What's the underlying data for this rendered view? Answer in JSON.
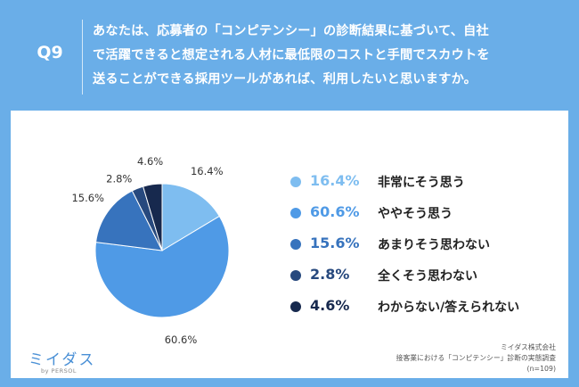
{
  "question": {
    "label": "Q9",
    "lines": [
      "あなたは、応募者の「コンピテンシー」の診断結果に基づいて、自社",
      "で活躍できると想定される人材に最低限のコストと手間でスカウトを",
      "送ることができる採用ツールがあれば、利用したいと思いますか。"
    ]
  },
  "chart_data": {
    "type": "pie",
    "title": "",
    "categories": [
      "非常にそう思う",
      "ややそう思う",
      "あまりそう思わない",
      "全くそう思わない",
      "わからない/答えられない"
    ],
    "values": [
      16.4,
      60.6,
      15.6,
      2.8,
      4.6
    ],
    "value_labels": [
      "16.4%",
      "60.6%",
      "15.6%",
      "2.8%",
      "4.6%"
    ],
    "colors": [
      "#7ebdf0",
      "#4f9ae6",
      "#3773bd",
      "#27497e",
      "#17294e"
    ],
    "legend_value_colors": [
      "#7ebdf0",
      "#4f9ae6",
      "#3773bd",
      "#27497e",
      "#17294e"
    ],
    "start_angle": "12 o'clock, clockwise",
    "legend_position": "right"
  },
  "logo": {
    "name": "ミイダス",
    "sub": "by PERSOL"
  },
  "source": {
    "lines": [
      "ミイダス株式会社",
      "接客業における「コンピテンシー」診断の実態調査",
      "(n=109)"
    ]
  }
}
